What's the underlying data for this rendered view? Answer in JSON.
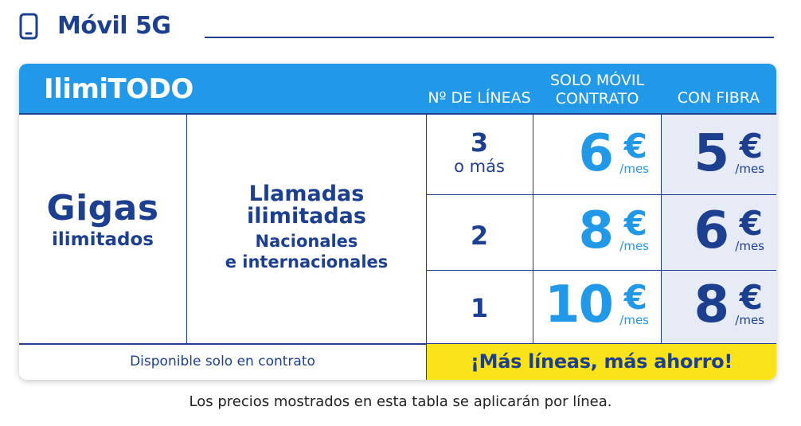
{
  "header": {
    "icon": "mobile-phone-icon",
    "title": "Móvil 5G"
  },
  "table": {
    "plan_name": "IlimiTODO",
    "column_headers": {
      "lines": "Nº DE LÍNEAS",
      "solo_movil_line1": "SOLO MÓVIL",
      "solo_movil_line2": "CONTRATO",
      "con_fibra": "CON FIBRA"
    },
    "gigas": {
      "big": "Gigas",
      "small": "ilimitados"
    },
    "calls": {
      "big_line1": "Llamadas",
      "big_line2": "ilimitadas",
      "small_line1": "Nacionales",
      "small_line2": "e internacionales"
    },
    "rows": [
      {
        "lines_big": "3",
        "lines_sub": "o más",
        "solo_price": "6",
        "fibra_price": "5"
      },
      {
        "lines_big": "2",
        "lines_sub": "",
        "solo_price": "8",
        "fibra_price": "6"
      },
      {
        "lines_big": "1",
        "lines_sub": "",
        "solo_price": "10",
        "fibra_price": "8"
      }
    ],
    "currency": "€",
    "period": "/mes",
    "footer_left": "Disponible solo en contrato",
    "footer_right": "¡Más líneas, más ahorro!"
  },
  "note": "Los precios mostrados en esta tabla se aplicarán por línea.",
  "colors": {
    "navy": "#1d3f8f",
    "accent_blue": "#2299e8",
    "highlight_yellow": "#fae318",
    "fibra_bg": "#e6ebf6"
  }
}
